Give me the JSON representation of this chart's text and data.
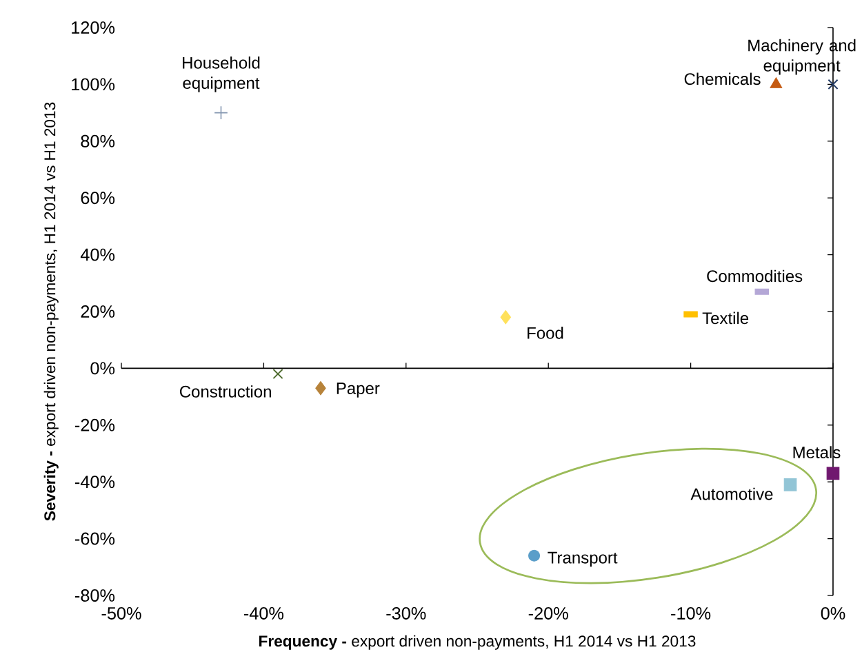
{
  "chart_data": {
    "type": "scatter",
    "xlabel": "**Frequency -** export driven non-payments, H1 2014 vs H1 2013",
    "ylabel": "**Severity -** export driven non-payments, H1 2014 vs H1 2013",
    "xlim": [
      -50,
      0
    ],
    "ylim": [
      -80,
      120
    ],
    "xticks": [
      {
        "value": -50,
        "label": "-50%"
      },
      {
        "value": -40,
        "label": "-40%"
      },
      {
        "value": -30,
        "label": "-30%"
      },
      {
        "value": -20,
        "label": "-20%"
      },
      {
        "value": -10,
        "label": "-10%"
      },
      {
        "value": 0,
        "label": "0%"
      }
    ],
    "yticks": [
      {
        "value": -80,
        "label": "-80%"
      },
      {
        "value": -60,
        "label": "-60%"
      },
      {
        "value": -40,
        "label": "-40%"
      },
      {
        "value": -20,
        "label": "-20%"
      },
      {
        "value": 0,
        "label": "0%"
      },
      {
        "value": 20,
        "label": "20%"
      },
      {
        "value": 40,
        "label": "40%"
      },
      {
        "value": 60,
        "label": "60%"
      },
      {
        "value": 80,
        "label": "80%"
      },
      {
        "value": 100,
        "label": "100%"
      },
      {
        "value": 120,
        "label": "120%"
      }
    ],
    "legend": false,
    "series": [
      {
        "name": "Household equipment",
        "color": "#8496b0",
        "marker": "plus",
        "x": [
          -43
        ],
        "values": [
          90
        ]
      },
      {
        "name": "Machinery and equipment",
        "color": "#1f3864",
        "marker": "cross",
        "x": [
          0
        ],
        "values": [
          100
        ]
      },
      {
        "name": "Chemicals",
        "color": "#c55a11",
        "marker": "triangle",
        "x": [
          -4
        ],
        "values": [
          100
        ]
      },
      {
        "name": "Commodities",
        "color": "#b4a7d6",
        "marker": "square",
        "x": [
          -5
        ],
        "values": [
          27
        ]
      },
      {
        "name": "Textile",
        "color": "#ffc000",
        "marker": "square",
        "x": [
          -10
        ],
        "values": [
          19
        ]
      },
      {
        "name": "Food",
        "color": "#ffe15b",
        "marker": "diamond",
        "x": [
          -23
        ],
        "values": [
          18
        ]
      },
      {
        "name": "Construction",
        "color": "#4e6b2e",
        "marker": "cross",
        "x": [
          -39
        ],
        "values": [
          -2
        ]
      },
      {
        "name": "Paper",
        "color": "#b7833a",
        "marker": "diamond",
        "x": [
          -36
        ],
        "values": [
          -7
        ]
      },
      {
        "name": "Metals",
        "color": "#70186f",
        "marker": "square",
        "x": [
          0
        ],
        "values": [
          -37
        ]
      },
      {
        "name": "Automotive",
        "color": "#92c5d6",
        "marker": "square",
        "x": [
          -3
        ],
        "values": [
          -41
        ]
      },
      {
        "name": "Transport",
        "color": "#5b9ec9",
        "marker": "circle",
        "x": [
          -21
        ],
        "values": [
          -66
        ]
      }
    ]
  }
}
